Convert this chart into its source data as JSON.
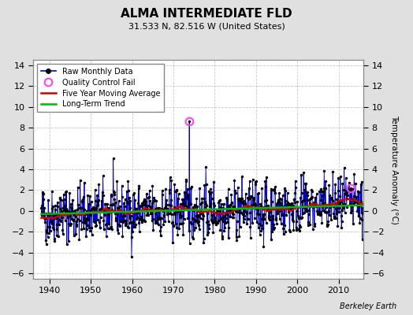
{
  "title": "ALMA INTERMEDIATE FLD",
  "subtitle": "31.533 N, 82.516 W (United States)",
  "ylabel": "Temperature Anomaly (°C)",
  "attribution": "Berkeley Earth",
  "xlim": [
    1936,
    2016
  ],
  "ylim": [
    -6.5,
    14.5
  ],
  "yticks": [
    -6,
    -4,
    -2,
    0,
    2,
    4,
    6,
    8,
    10,
    12,
    14
  ],
  "xticks": [
    1940,
    1950,
    1960,
    1970,
    1980,
    1990,
    2000,
    2010
  ],
  "outer_bg": "#e0e0e0",
  "plot_bg": "#ffffff",
  "raw_color": "#0000cc",
  "moving_avg_color": "#cc0000",
  "trend_color": "#00bb00",
  "qc_fail_color": "#ff44ff",
  "seed": 42,
  "n_months": 936,
  "start_year": 1938.0,
  "qc_fail_idx": 430,
  "qc_fail_val": 8.6,
  "qc_fail2_idx": 900,
  "qc_fail2_val": 2.2
}
